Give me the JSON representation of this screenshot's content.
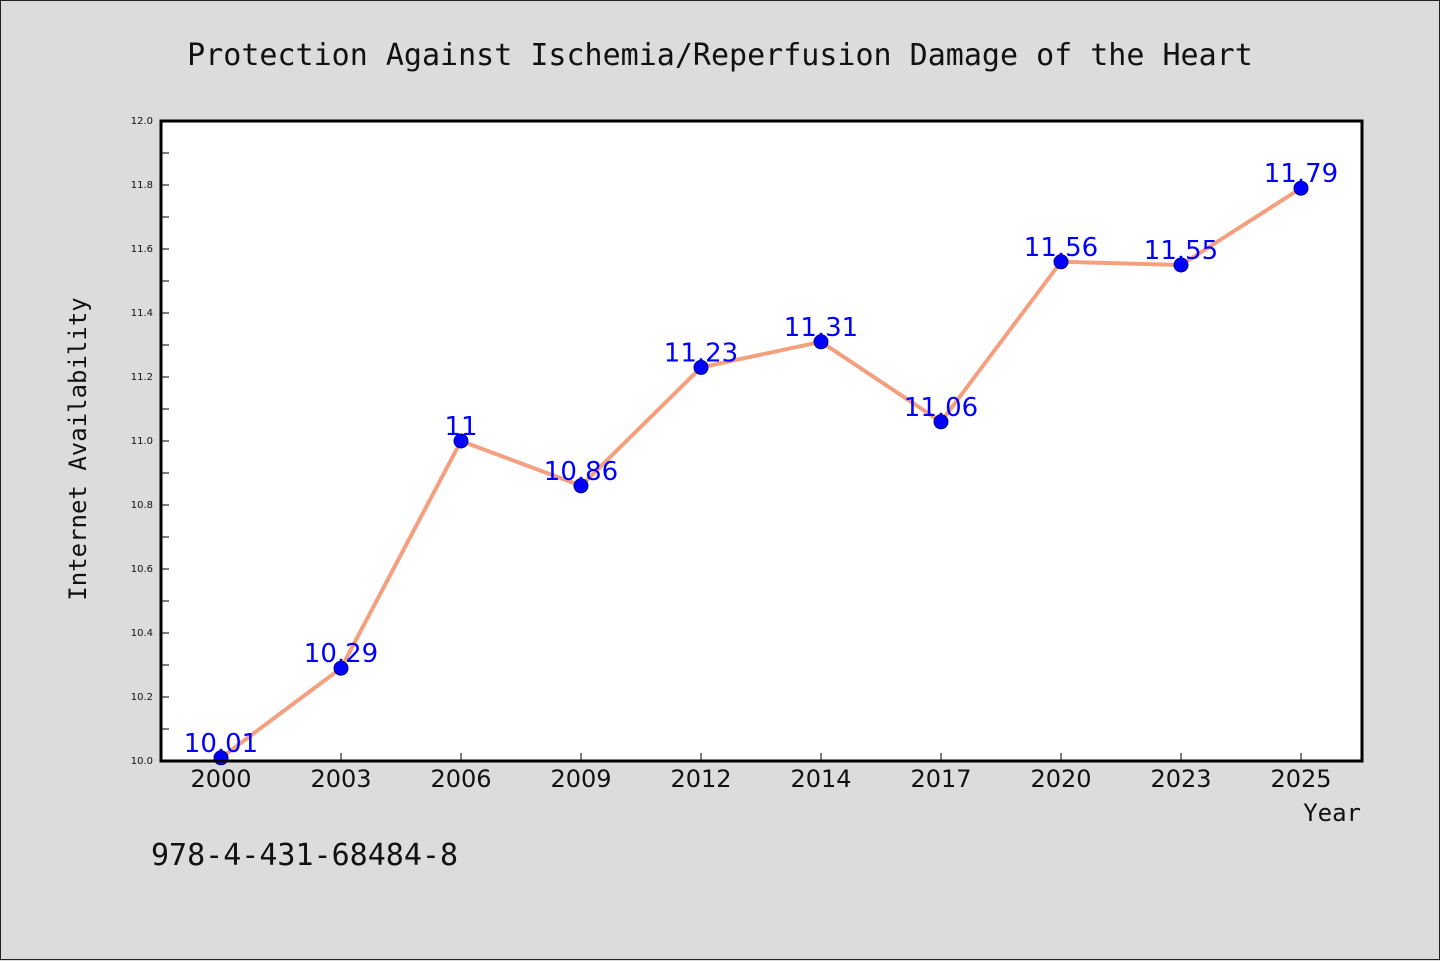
{
  "chart_data": {
    "type": "line",
    "title": "Protection Against Ischemia/Reperfusion Damage of the Heart",
    "xlabel": "Year",
    "ylabel": "Internet Availability",
    "categories": [
      "2000",
      "2003",
      "2006",
      "2009",
      "2012",
      "2014",
      "2017",
      "2020",
      "2023",
      "2025"
    ],
    "values": [
      10.01,
      10.29,
      11,
      10.86,
      11.23,
      11.31,
      11.06,
      11.56,
      11.55,
      11.79
    ],
    "data_labels": [
      "10.01",
      "10.29",
      "11",
      "10.86",
      "11.23",
      "11.31",
      "11.06",
      "11.56",
      "11.55",
      "11.79"
    ],
    "ylim": [
      10.0,
      12.0
    ],
    "yticks": [
      "10.0",
      "10.2",
      "10.4",
      "10.6",
      "10.8",
      "11.0",
      "11.2",
      "11.4",
      "11.6",
      "11.8",
      "12.0"
    ],
    "grid": false,
    "legend": "none",
    "line_color": "#f4a07f",
    "marker_color": "#0000ff",
    "label_color": "#0000ff"
  },
  "footer": {
    "isbn": "978-4-431-68484-8"
  }
}
